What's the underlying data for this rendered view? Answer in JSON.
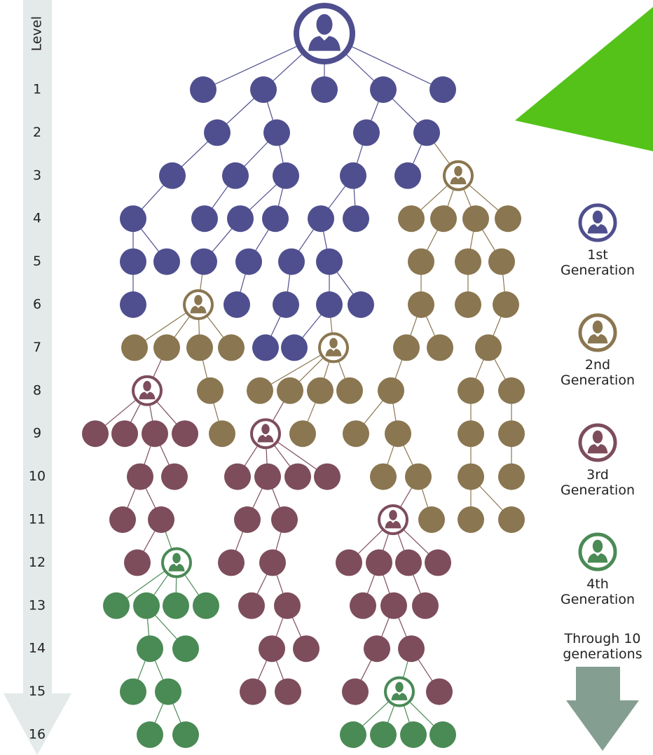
{
  "axis_label": "Level",
  "levels": [
    1,
    2,
    3,
    4,
    5,
    6,
    7,
    8,
    9,
    10,
    11,
    12,
    13,
    14,
    15,
    16
  ],
  "legend": [
    {
      "label": "1st Generation"
    },
    {
      "label": "2nd Generation"
    },
    {
      "label": "3rd Generation"
    },
    {
      "label": "4th Generation"
    }
  ],
  "note": "Through 10 generations"
}
